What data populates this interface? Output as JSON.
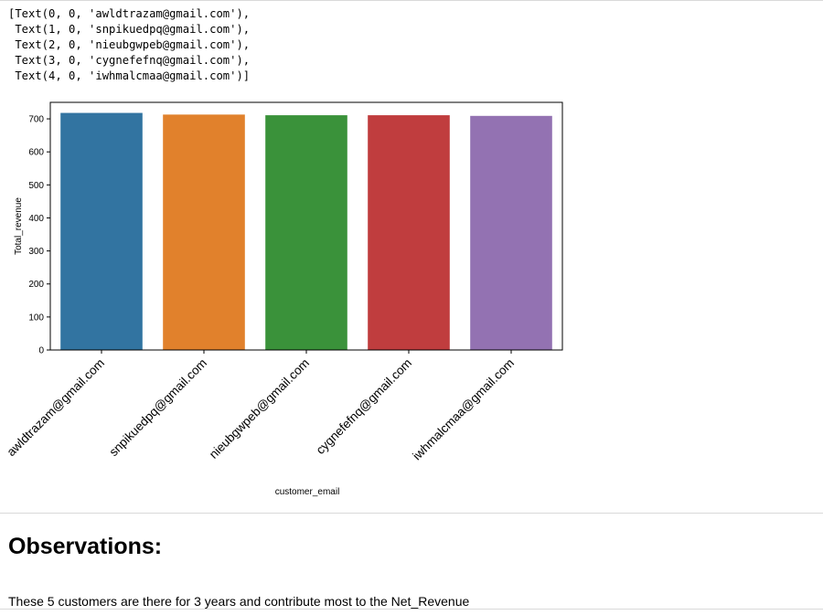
{
  "output": {
    "lines": [
      "[Text(0, 0, 'awldtrazam@gmail.com'),",
      " Text(1, 0, 'snpikuedpq@gmail.com'),",
      " Text(2, 0, 'nieubgwpeb@gmail.com'),",
      " Text(3, 0, 'cygnefefnq@gmail.com'),",
      " Text(4, 0, 'iwhmalcmaa@gmail.com')]"
    ]
  },
  "chart_data": {
    "type": "bar",
    "categories": [
      "awldtrazam@gmail.com",
      "snpikuedpq@gmail.com",
      "nieubgwpeb@gmail.com",
      "cygnefefnq@gmail.com",
      "iwhmalcmaa@gmail.com"
    ],
    "values": [
      718,
      713,
      711,
      711,
      709
    ],
    "colors": [
      "#3274a1",
      "#e1812c",
      "#3a923a",
      "#c03d3e",
      "#9372b2"
    ],
    "xlabel": "customer_email",
    "ylabel": "Total_revenue",
    "ylim": [
      0,
      750
    ],
    "yticks": [
      0,
      100,
      200,
      300,
      400,
      500,
      600,
      700
    ],
    "grid": false
  },
  "markdown": {
    "heading": "Observations:",
    "paragraph": "These 5 customers are there for 3 years and contribute most to the Net_Revenue"
  }
}
